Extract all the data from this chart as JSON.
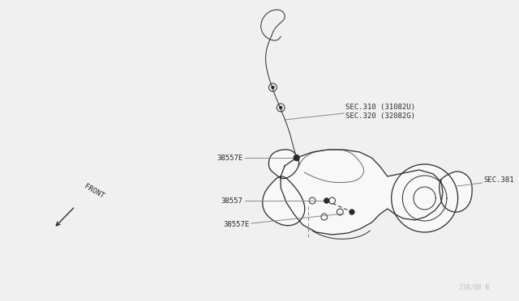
{
  "bg_color": "#f0f0f0",
  "line_color": "#2a2a2a",
  "labels": {
    "sec310": "SEC.310 (31082U)",
    "sec320": "SEC.320 (32082G)",
    "sec381": "SEC.381",
    "part38557E_upper": "38557E",
    "part38557": "38557",
    "part38557E_lower": "38557E",
    "front": "FRONT",
    "watermark": "J38/00 N"
  },
  "figsize": [
    6.4,
    3.72
  ],
  "dpi": 100
}
